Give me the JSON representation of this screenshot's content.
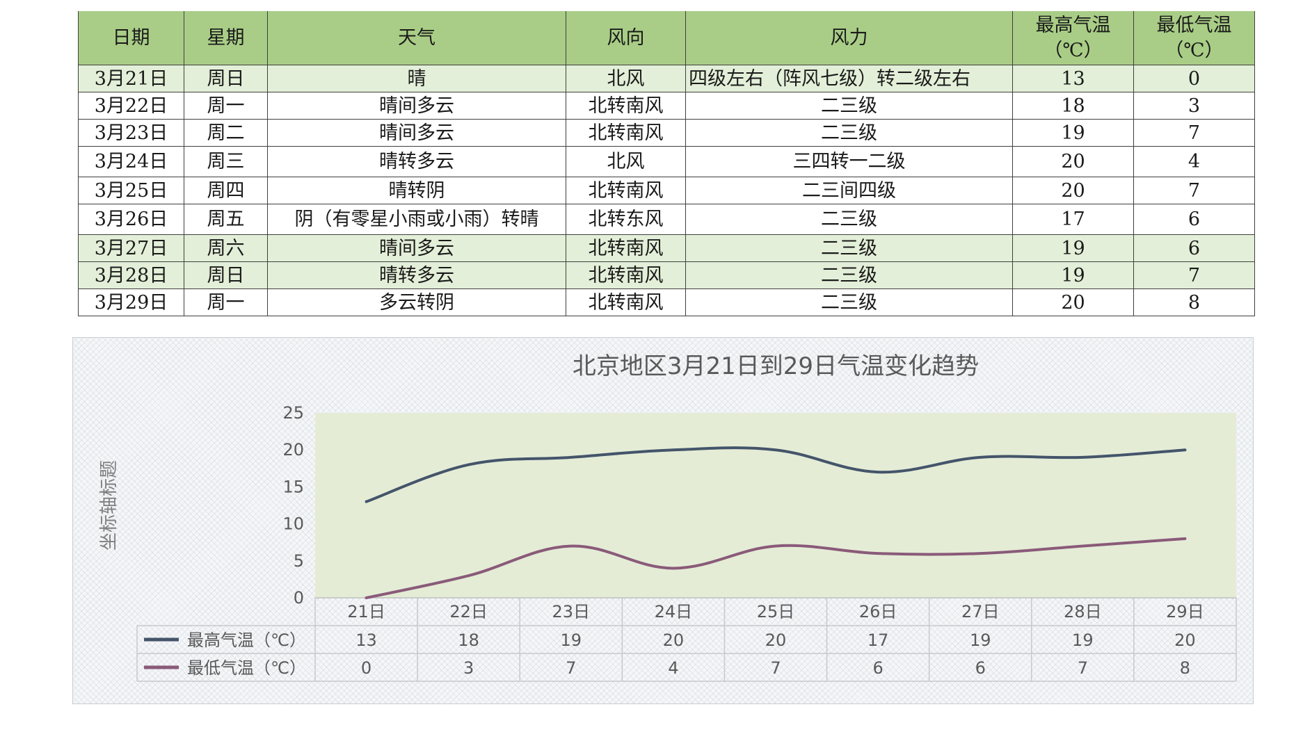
{
  "table": {
    "headers": [
      "日期",
      "星期",
      "天气",
      "风向",
      "风力",
      "最高气温",
      "（℃）",
      "最低气温",
      "（℃）"
    ],
    "rows": [
      [
        "3月21日",
        "周日",
        "晴",
        "北风",
        "四级左右（阵风七级）转二级左右",
        "13",
        "0"
      ],
      [
        "3月22日",
        "周一",
        "晴间多云",
        "北转南风",
        "二三级",
        "18",
        "3"
      ],
      [
        "3月23日",
        "周二",
        "晴间多云",
        "北转南风",
        "二三级",
        "19",
        "7"
      ],
      [
        "3月24日",
        "周三",
        "晴转多云",
        "北风",
        "三四转一二级",
        "20",
        "4"
      ],
      [
        "3月25日",
        "周四",
        "晴转阴",
        "北转南风",
        "二三间四级",
        "20",
        "7"
      ],
      [
        "3月26日",
        "周五",
        "阴（有零星小雨或小雨）转晴",
        "北转东风",
        "二三级",
        "17",
        "6"
      ],
      [
        "3月27日",
        "周六",
        "晴间多云",
        "北转南风",
        "二三级",
        "19",
        "6"
      ],
      [
        "3月28日",
        "周日",
        "晴转多云",
        "北转南风",
        "二三级",
        "19",
        "7"
      ],
      [
        "3月29日",
        "周一",
        "多云转阴",
        "北转南风",
        "二三级",
        "20",
        "8"
      ]
    ]
  },
  "chart_data": {
    "type": "line",
    "title": "北京地区3月21日到29日气温变化趋势",
    "ylabel": "坐标轴标题",
    "xlabel": "",
    "categories": [
      "21日",
      "22日",
      "23日",
      "24日",
      "25日",
      "26日",
      "27日",
      "28日",
      "29日"
    ],
    "ylim": [
      0,
      25
    ],
    "yticks": [
      0,
      5,
      10,
      15,
      20,
      25
    ],
    "series": [
      {
        "name": "最高气温（℃）",
        "values": [
          13,
          18,
          19,
          20,
          20,
          17,
          19,
          19,
          20
        ],
        "color": "#44546a"
      },
      {
        "name": "最低气温（℃）",
        "values": [
          0,
          3,
          7,
          4,
          7,
          6,
          6,
          7,
          8
        ],
        "color": "#8a5a79"
      }
    ],
    "smooth": true,
    "grid": false,
    "plot_background": "#e4ecd6",
    "data_table": true
  }
}
